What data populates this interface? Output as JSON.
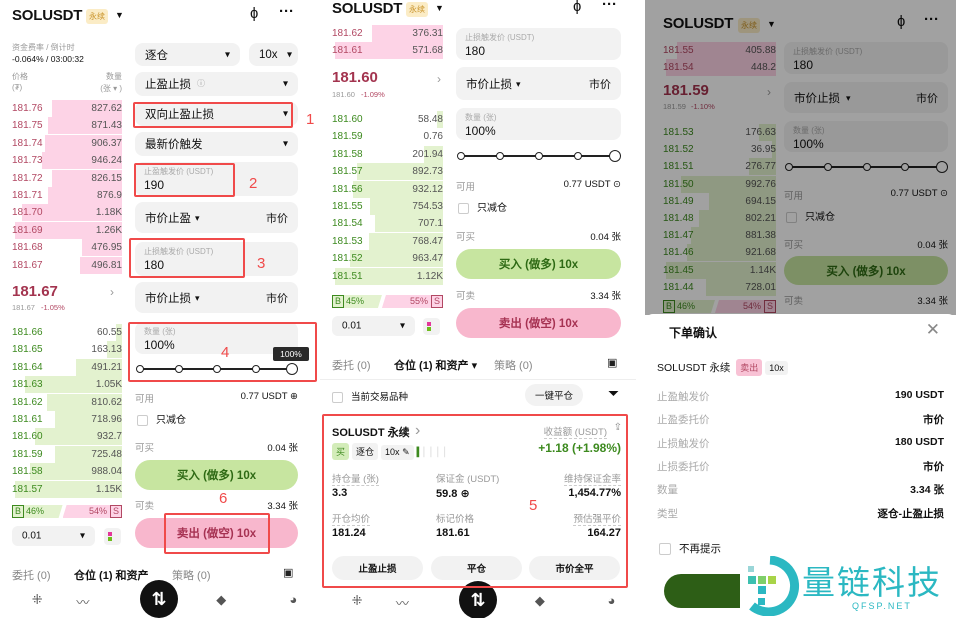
{
  "colors": {
    "ask": "#b24863",
    "ask_depth": "#fdd3e6",
    "bid": "#3d8a1f",
    "bid_depth": "#e3f2cf",
    "annotation": "#f04a4a",
    "buy": "#c7e5a0",
    "sell": "#f8b7cd",
    "pnl": "#3d8a1f"
  },
  "header": {
    "symbol": "SOLUSDT",
    "badge": "永续",
    "chart_icon": "candlestick-icon",
    "more_icon": "more-icon"
  },
  "panel1": {
    "funding_label": "资金费率 / 倒计时",
    "funding_value": "-0.064% / 03:00:32",
    "price_label": "价格",
    "price_unit": "(₮)",
    "qty_label": "数量",
    "qty_unit": "(张 ▾ )",
    "asks": [
      [
        "181.76",
        "827.62"
      ],
      [
        "181.75",
        "871.43"
      ],
      [
        "181.74",
        "906.37"
      ],
      [
        "181.73",
        "946.24"
      ],
      [
        "181.72",
        "826.15"
      ],
      [
        "181.71",
        "876.9"
      ],
      [
        "181.70",
        "1.18K"
      ],
      [
        "181.69",
        "1.26K"
      ],
      [
        "181.68",
        "476.95"
      ],
      [
        "181.67",
        "496.81"
      ]
    ],
    "mid": "181.67",
    "mid_sub_price": "181.67",
    "mid_sub_change": "-1.05%",
    "bids": [
      [
        "181.66",
        "60.55"
      ],
      [
        "181.65",
        "163.13"
      ],
      [
        "181.64",
        "491.21"
      ],
      [
        "181.63",
        "1.05K"
      ],
      [
        "181.62",
        "810.62"
      ],
      [
        "181.61",
        "718.96"
      ],
      [
        "181.60",
        "932.7"
      ],
      [
        "181.59",
        "725.48"
      ],
      [
        "181.58",
        "988.04"
      ],
      [
        "181.57",
        "1.15K"
      ]
    ],
    "ratio": {
      "b": "B",
      "b_pct": "46%",
      "s_pct": "54%",
      "s": "S",
      "buy_fraction": 0.46
    },
    "precision": "0.01",
    "form": {
      "margin": "逐仓",
      "leverage": "10x",
      "order_type": "止盈止损",
      "tpsl_mode": "双向止盈止损",
      "trigger": "最新价触发",
      "tp_label": "止盈触发价 (USDT)",
      "tp_value": "190",
      "tp_type": "市价止盈",
      "tp_price": "市价",
      "sl_label": "止损触发价 (USDT)",
      "sl_value": "180",
      "sl_type": "市价止损",
      "sl_price": "市价",
      "qty_label": "数量 (张)",
      "qty_value": "100%",
      "tooltip": "100%",
      "slider_fraction": 1.0,
      "avail_label": "可用",
      "avail_value": "0.77 USDT",
      "reduce_only": "只减仓",
      "can_buy_label": "可买",
      "can_buy_value": "0.04 张",
      "buy_button": "买入 (做多) 10x",
      "can_sell_label": "可卖",
      "can_sell_value": "3.34 张",
      "sell_button": "卖出 (做空) 10x"
    },
    "tabs": [
      "委托 (0)",
      "仓位 (1) 和资产",
      "策略 (0)"
    ],
    "annotations": [
      "1",
      "2",
      "3",
      "4",
      "6"
    ]
  },
  "panel2": {
    "asks": [
      [
        "181.62",
        "376.31"
      ],
      [
        "181.61",
        "571.68"
      ]
    ],
    "mid": "181.60",
    "mid_sub_price": "181.60",
    "mid_sub_change": "-1.09%",
    "bids": [
      [
        "181.60",
        "58.48"
      ],
      [
        "181.59",
        "0.76"
      ],
      [
        "181.58",
        "201.94"
      ],
      [
        "181.57",
        "892.73"
      ],
      [
        "181.56",
        "932.12"
      ],
      [
        "181.55",
        "754.53"
      ],
      [
        "181.54",
        "707.1"
      ],
      [
        "181.53",
        "768.47"
      ],
      [
        "181.52",
        "963.47"
      ],
      [
        "181.51",
        "1.12K"
      ]
    ],
    "ratio": {
      "b": "B",
      "b_pct": "45%",
      "s_pct": "55%",
      "s": "S",
      "buy_fraction": 0.45
    },
    "precision": "0.01",
    "form": {
      "sl_label": "止损触发价 (USDT)",
      "sl_value": "180",
      "sl_type": "市价止损",
      "sl_price": "市价",
      "qty_label": "数量 (张)",
      "qty_value": "100%",
      "slider_fraction": 1.0,
      "avail_label": "可用",
      "avail_value": "0.77 USDT",
      "reduce_only": "只减仓",
      "can_buy_label": "可买",
      "can_buy_value": "0.04 张",
      "buy_button": "买入 (做多) 10x",
      "can_sell_label": "可卖",
      "can_sell_value": "3.34 张",
      "sell_button": "卖出 (做空) 10x"
    },
    "tabs": [
      "委托 (0)",
      "仓位 (1) 和资产 ▾",
      "策略 (0)"
    ],
    "filter_label": "当前交易品种",
    "close_all": "一键平仓",
    "position": {
      "title": "SOLUSDT 永续",
      "pnl_label": "收益额 (USDT)",
      "side": "买",
      "margin": "逐仓",
      "leverage": "10x",
      "pnl": "+1.18 (+1.98%)",
      "size_label": "持仓量 (张)",
      "size": "3.3",
      "margin_label": "保证金 (USDT)",
      "margin_value": "59.8",
      "mmr_label": "维持保证金率",
      "mmr": "1,454.77%",
      "entry_label": "开仓均价",
      "entry": "181.24",
      "mark_label": "标记价格",
      "mark": "181.61",
      "liq_label": "预估强平价",
      "liq": "164.27",
      "buttons": [
        "止盈止损",
        "平仓",
        "市价全平"
      ]
    },
    "annotation": "5"
  },
  "panel3": {
    "asks": [
      [
        "181.55",
        "405.88"
      ],
      [
        "181.54",
        "448.2"
      ]
    ],
    "mid": "181.59",
    "mid_sub_price": "181.59",
    "mid_sub_change": "-1.10%",
    "bids": [
      [
        "181.53",
        "176.63"
      ],
      [
        "181.52",
        "36.95"
      ],
      [
        "181.51",
        "276.77"
      ],
      [
        "181.50",
        "992.76"
      ],
      [
        "181.49",
        "694.15"
      ],
      [
        "181.48",
        "802.21"
      ],
      [
        "181.47",
        "881.38"
      ],
      [
        "181.46",
        "921.68"
      ],
      [
        "181.45",
        "1.14K"
      ],
      [
        "181.44",
        "728.01"
      ]
    ],
    "ratio": {
      "b": "B",
      "b_pct": "46%",
      "s_pct": "54%",
      "s": "S",
      "buy_fraction": 0.46
    },
    "form": {
      "sl_label": "止损触发价 (USDT)",
      "sl_value": "180",
      "sl_type": "市价止损",
      "sl_price": "市价",
      "qty_label": "数量 (张)",
      "qty_value": "100%",
      "avail_label": "可用",
      "avail_value": "0.77 USDT",
      "reduce_only": "只减仓",
      "can_buy_label": "可买",
      "can_buy_value": "0.04 张",
      "buy_button": "买入 (做多) 10x",
      "can_sell_label": "可卖",
      "can_sell_value": "3.34 张"
    },
    "modal": {
      "title": "下单确认",
      "symbol": "SOLUSDT 永续",
      "side": "卖出",
      "leverage": "10x",
      "rows": [
        [
          "止盈触发价",
          "190 USDT"
        ],
        [
          "止盈委托价",
          "市价"
        ],
        [
          "止损触发价",
          "180 USDT"
        ],
        [
          "止损委托价",
          "市价"
        ],
        [
          "数量",
          "3.34 张"
        ],
        [
          "类型",
          "逐仓-止盈止损"
        ]
      ],
      "dont_show": "不再提示"
    },
    "watermark": {
      "name": "量链科技",
      "domain": "QFSP.NET"
    }
  }
}
